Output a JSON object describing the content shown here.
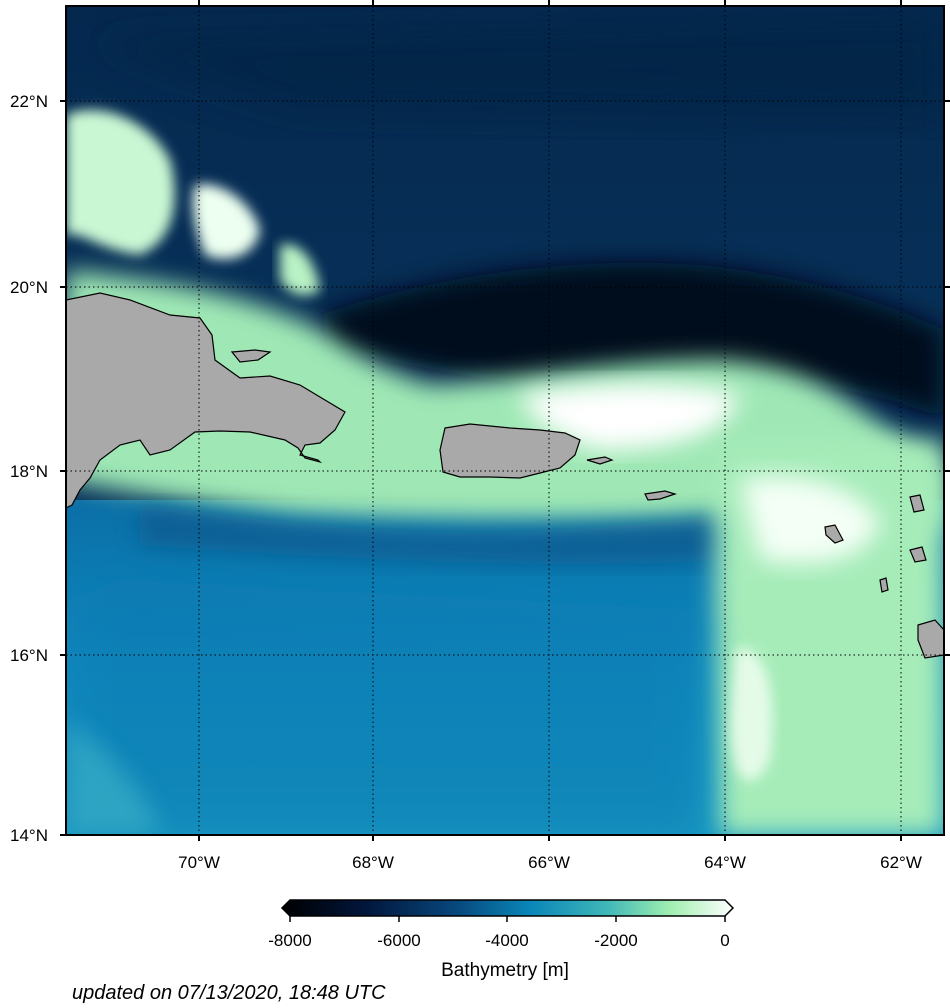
{
  "map": {
    "lat_ticks": [
      {
        "label": "22°N"
      },
      {
        "label": "20°N"
      },
      {
        "label": "18°N"
      },
      {
        "label": "16°N"
      },
      {
        "label": "14°N"
      }
    ],
    "lon_ticks": [
      {
        "label": "70°W"
      },
      {
        "label": "68°W"
      },
      {
        "label": "66°W"
      },
      {
        "label": "64°W"
      },
      {
        "label": "62°W"
      }
    ],
    "colors": {
      "land": "#a9a9a9",
      "deep": "#000814",
      "mid": "#0a86b8",
      "shallow": "#b6f5c0",
      "surface": "#ffffff"
    }
  },
  "colorbar": {
    "title": "Bathymetry [m]",
    "ticks": [
      "-8000",
      "-6000",
      "-4000",
      "-2000",
      "0"
    ]
  },
  "footer": {
    "updated": "updated on 07/13/2020, 18:48 UTC"
  }
}
